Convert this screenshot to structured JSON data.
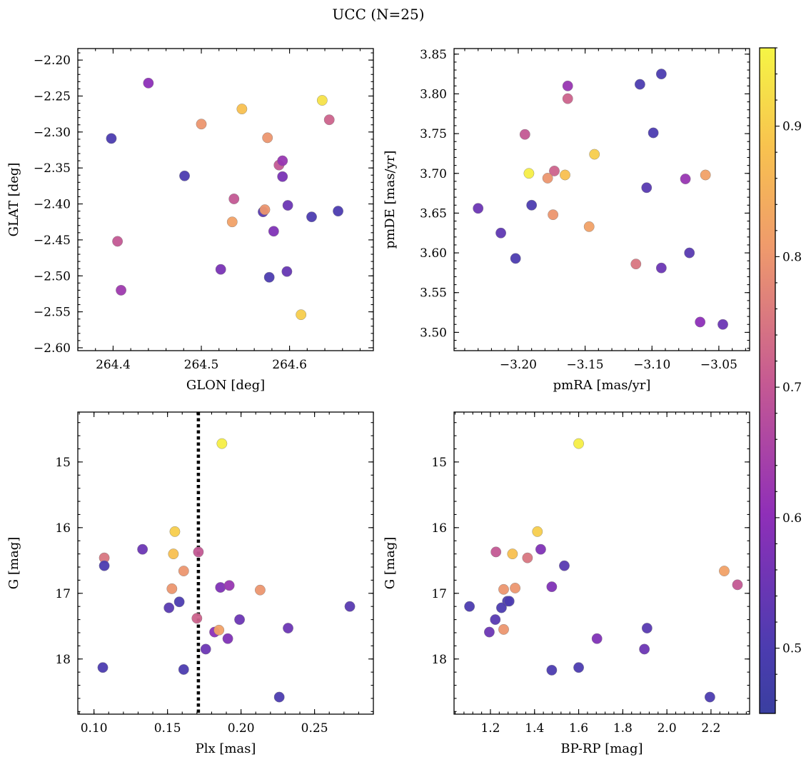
{
  "figure": {
    "title": "UCC (N=25)"
  },
  "colorbar": {
    "cmap": "plasma",
    "range": [
      0.45,
      0.96
    ],
    "ticks": [
      0.5,
      0.6,
      0.7,
      0.8,
      0.9
    ],
    "tick_labels": [
      "0.5",
      "0.6",
      "0.7",
      "0.8",
      "0.9"
    ]
  },
  "chart_data": [
    {
      "type": "scatter",
      "title": "",
      "xlabel": "GLON [deg]",
      "ylabel": "GLAT [deg]",
      "xlim": [
        264.36,
        264.695
      ],
      "ylim": [
        -2.604,
        -2.184
      ],
      "xticks": [
        264.4,
        264.5,
        264.6
      ],
      "xtick_labels": [
        "264.4",
        "264.5",
        "264.6"
      ],
      "yticks": [
        -2.2,
        -2.25,
        -2.3,
        -2.35,
        -2.4,
        -2.45,
        -2.5,
        -2.55,
        -2.6
      ],
      "ytick_labels": [
        "−2.20",
        "−2.25",
        "−2.30",
        "−2.35",
        "−2.40",
        "−2.45",
        "−2.50",
        "−2.55",
        "−2.60"
      ],
      "x": [
        264.44,
        264.398,
        264.481,
        264.405,
        264.409,
        264.5,
        264.546,
        264.575,
        264.637,
        264.645,
        264.537,
        264.535,
        264.57,
        264.572,
        264.588,
        264.592,
        264.592,
        264.598,
        264.582,
        264.522,
        264.577,
        264.597,
        264.613,
        264.625,
        264.655
      ],
      "y": [
        -2.232,
        -2.309,
        -2.361,
        -2.452,
        -2.52,
        -2.289,
        -2.268,
        -2.308,
        -2.256,
        -2.283,
        -2.393,
        -2.425,
        -2.411,
        -2.408,
        -2.346,
        -2.34,
        -2.362,
        -2.402,
        -2.438,
        -2.491,
        -2.502,
        -2.494,
        -2.554,
        -2.418,
        -2.41
      ],
      "c": [
        0.6,
        0.5,
        0.5,
        0.7,
        0.63,
        0.8,
        0.88,
        0.8,
        0.93,
        0.72,
        0.7,
        0.82,
        0.52,
        0.8,
        0.7,
        0.62,
        0.57,
        0.55,
        0.58,
        0.57,
        0.5,
        0.54,
        0.9,
        0.5,
        0.5
      ]
    },
    {
      "type": "scatter",
      "title": "",
      "xlabel": "pmRA [mas/yr]",
      "ylabel": "pmDE [mas/yr]",
      "xlim": [
        -3.248,
        -3.027
      ],
      "ylim": [
        3.477,
        3.857
      ],
      "xticks": [
        -3.2,
        -3.15,
        -3.1,
        -3.05
      ],
      "xtick_labels": [
        "−3.20",
        "−3.15",
        "−3.10",
        "−3.05"
      ],
      "yticks": [
        3.5,
        3.55,
        3.6,
        3.65,
        3.7,
        3.75,
        3.8,
        3.85
      ],
      "ytick_labels": [
        "3.50",
        "3.55",
        "3.60",
        "3.65",
        "3.70",
        "3.75",
        "3.80",
        "3.85"
      ],
      "x": [
        -3.163,
        -3.163,
        -3.195,
        -3.192,
        -3.173,
        -3.178,
        -3.165,
        -3.143,
        -3.19,
        -3.23,
        -3.213,
        -3.202,
        -3.174,
        -3.147,
        -3.109,
        -3.093,
        -3.099,
        -3.104,
        -3.075,
        -3.06,
        -3.072,
        -3.112,
        -3.093,
        -3.064,
        -3.047
      ],
      "y": [
        3.81,
        3.794,
        3.749,
        3.7,
        3.703,
        3.694,
        3.698,
        3.724,
        3.66,
        3.656,
        3.625,
        3.593,
        3.648,
        3.633,
        3.812,
        3.825,
        3.751,
        3.682,
        3.693,
        3.698,
        3.6,
        3.586,
        3.581,
        3.513,
        3.51
      ],
      "c": [
        0.62,
        0.72,
        0.7,
        0.95,
        0.72,
        0.8,
        0.88,
        0.9,
        0.5,
        0.55,
        0.53,
        0.5,
        0.8,
        0.82,
        0.5,
        0.5,
        0.5,
        0.52,
        0.62,
        0.82,
        0.52,
        0.75,
        0.55,
        0.6,
        0.55
      ]
    },
    {
      "type": "scatter",
      "title": "",
      "xlabel": "Plx [mas]",
      "ylabel": "G [mag]",
      "xlim": [
        0.089,
        0.29
      ],
      "ylim": [
        18.84,
        14.24
      ],
      "xticks": [
        0.1,
        0.15,
        0.2,
        0.25
      ],
      "xtick_labels": [
        "0.10",
        "0.15",
        "0.20",
        "0.25"
      ],
      "yticks": [
        15,
        16,
        17,
        18
      ],
      "ytick_labels": [
        "15",
        "16",
        "17",
        "18"
      ],
      "vline": 0.171,
      "x": [
        0.187,
        0.155,
        0.154,
        0.133,
        0.107,
        0.107,
        0.171,
        0.161,
        0.153,
        0.186,
        0.192,
        0.213,
        0.158,
        0.151,
        0.17,
        0.199,
        0.182,
        0.185,
        0.191,
        0.176,
        0.232,
        0.274,
        0.106,
        0.161,
        0.226
      ],
      "y": [
        14.72,
        16.06,
        16.4,
        16.33,
        16.46,
        16.58,
        16.37,
        16.66,
        16.93,
        16.91,
        16.88,
        16.95,
        17.13,
        17.22,
        17.38,
        17.4,
        17.59,
        17.56,
        17.69,
        17.85,
        17.53,
        17.2,
        18.13,
        18.16,
        18.58
      ],
      "c": [
        0.95,
        0.9,
        0.88,
        0.55,
        0.75,
        0.5,
        0.7,
        0.8,
        0.8,
        0.58,
        0.62,
        0.8,
        0.5,
        0.52,
        0.72,
        0.55,
        0.6,
        0.82,
        0.58,
        0.55,
        0.55,
        0.52,
        0.5,
        0.5,
        0.5
      ]
    },
    {
      "type": "scatter",
      "title": "",
      "xlabel": "BP-RP [mag]",
      "ylabel": "G [mag]",
      "xlim": [
        1.035,
        2.375
      ],
      "ylim": [
        18.84,
        14.24
      ],
      "xticks": [
        1.2,
        1.4,
        1.6,
        1.8,
        2.0,
        2.2
      ],
      "xtick_labels": [
        "1.2",
        "1.4",
        "1.6",
        "1.8",
        "2.0",
        "2.2"
      ],
      "yticks": [
        15,
        16,
        17,
        18
      ],
      "ytick_labels": [
        "15",
        "16",
        "17",
        "18"
      ],
      "x": [
        1.6,
        1.413,
        1.3,
        1.225,
        1.428,
        1.368,
        1.535,
        1.26,
        1.312,
        1.478,
        2.26,
        2.32,
        1.277,
        1.25,
        1.105,
        1.222,
        1.195,
        1.26,
        1.683,
        1.898,
        1.91,
        1.478,
        1.6,
        2.195,
        1.285
      ],
      "y": [
        14.72,
        16.06,
        16.4,
        16.37,
        16.33,
        16.46,
        16.58,
        16.94,
        16.92,
        16.9,
        16.66,
        16.87,
        17.12,
        17.22,
        17.2,
        17.4,
        17.59,
        17.55,
        17.69,
        17.85,
        17.53,
        18.17,
        18.13,
        18.58,
        17.12
      ],
      "c": [
        0.95,
        0.9,
        0.88,
        0.7,
        0.58,
        0.75,
        0.52,
        0.8,
        0.8,
        0.58,
        0.82,
        0.7,
        0.5,
        0.5,
        0.5,
        0.52,
        0.55,
        0.8,
        0.58,
        0.55,
        0.52,
        0.5,
        0.5,
        0.5,
        0.5
      ]
    }
  ]
}
